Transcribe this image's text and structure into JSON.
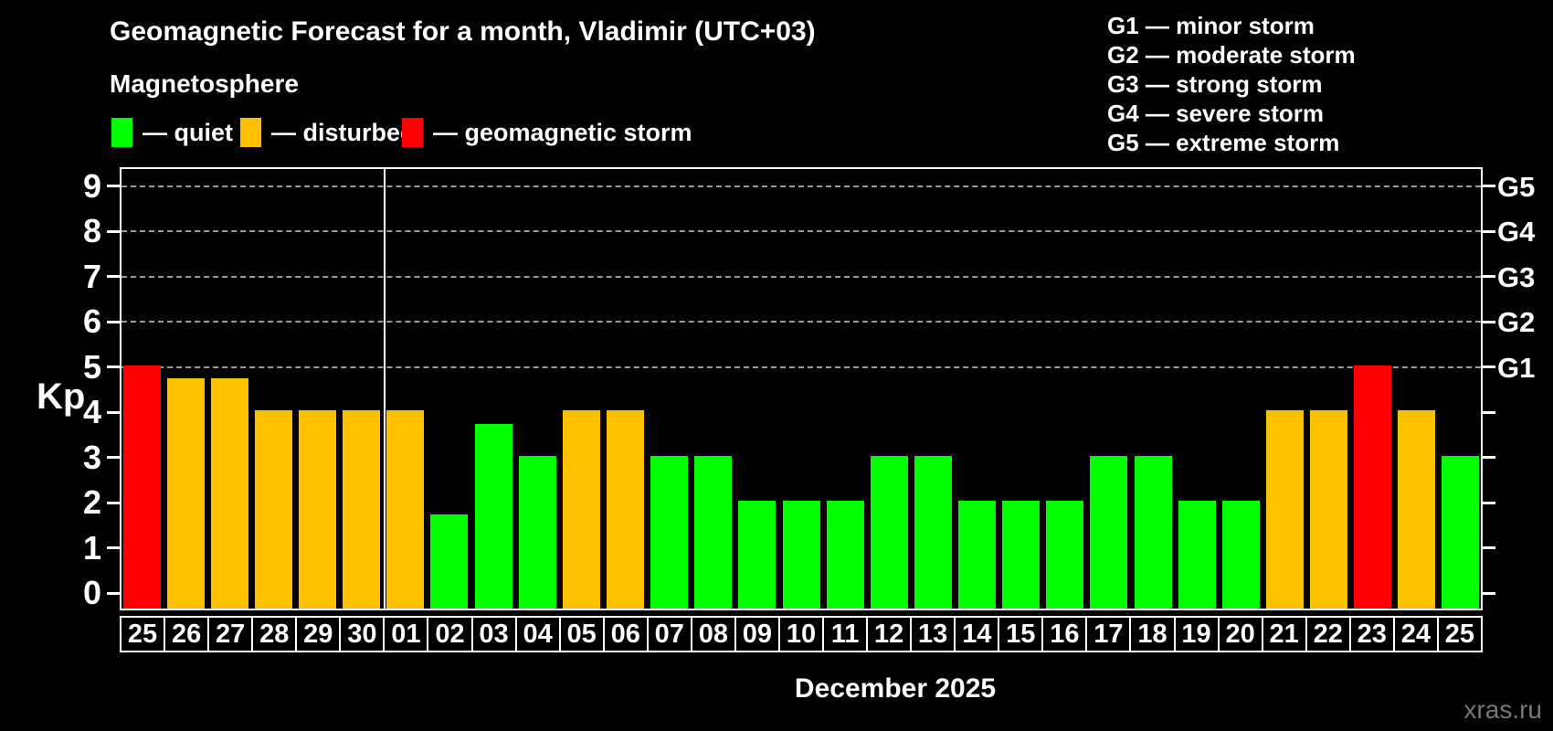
{
  "header": {
    "title": "Geomagnetic Forecast for a month, Vladimir (UTC+03)",
    "subtitle": "Magnetosphere"
  },
  "legend": {
    "items": [
      {
        "label": "— quiet",
        "status": "quiet",
        "color": "#00ff00"
      },
      {
        "label": "— disturbed",
        "status": "disturbed",
        "color": "#ffc000"
      },
      {
        "label": "— geomagnetic storm",
        "status": "storm",
        "color": "#ff0000"
      }
    ]
  },
  "g_legend": [
    "G1 — minor storm",
    "G2 — moderate storm",
    "G3 — strong storm",
    "G4 — severe storm",
    "G5 — extreme storm"
  ],
  "footer": {
    "month_label": "December 2025",
    "watermark": "xras.ru"
  },
  "chart_data": {
    "type": "bar",
    "title": "Geomagnetic Forecast for a month, Vladimir (UTC+03)",
    "ylabel": "Kp",
    "xlabel": "December 2025",
    "ylim": [
      0,
      9
    ],
    "yticks": [
      0,
      1,
      2,
      3,
      4,
      5,
      6,
      7,
      8,
      9
    ],
    "gridlines_at": [
      5,
      6,
      7,
      8,
      9
    ],
    "grid": "dashed horizontal at storm levels only",
    "right_axis_labels": [
      {
        "label": "G1",
        "kp": 5
      },
      {
        "label": "G2",
        "kp": 6
      },
      {
        "label": "G3",
        "kp": 7
      },
      {
        "label": "G4",
        "kp": 8
      },
      {
        "label": "G5",
        "kp": 9
      }
    ],
    "month_separator_after_index": 5,
    "status_colors": {
      "quiet": "#00ff00",
      "disturbed": "#ffc000",
      "storm": "#ff0000"
    },
    "categories": [
      "25",
      "26",
      "27",
      "28",
      "29",
      "30",
      "01",
      "02",
      "03",
      "04",
      "05",
      "06",
      "07",
      "08",
      "09",
      "10",
      "11",
      "12",
      "13",
      "14",
      "15",
      "16",
      "17",
      "18",
      "19",
      "20",
      "21",
      "22",
      "23",
      "24",
      "25"
    ],
    "bars": [
      {
        "day": "25",
        "kp": 5.0,
        "status": "storm"
      },
      {
        "day": "26",
        "kp": 4.7,
        "status": "disturbed"
      },
      {
        "day": "27",
        "kp": 4.7,
        "status": "disturbed"
      },
      {
        "day": "28",
        "kp": 4.0,
        "status": "disturbed"
      },
      {
        "day": "29",
        "kp": 4.0,
        "status": "disturbed"
      },
      {
        "day": "30",
        "kp": 4.0,
        "status": "disturbed"
      },
      {
        "day": "01",
        "kp": 4.0,
        "status": "disturbed"
      },
      {
        "day": "02",
        "kp": 1.7,
        "status": "quiet"
      },
      {
        "day": "03",
        "kp": 3.7,
        "status": "quiet"
      },
      {
        "day": "04",
        "kp": 3.0,
        "status": "quiet"
      },
      {
        "day": "05",
        "kp": 4.0,
        "status": "disturbed"
      },
      {
        "day": "06",
        "kp": 4.0,
        "status": "disturbed"
      },
      {
        "day": "07",
        "kp": 3.0,
        "status": "quiet"
      },
      {
        "day": "08",
        "kp": 3.0,
        "status": "quiet"
      },
      {
        "day": "09",
        "kp": 2.0,
        "status": "quiet"
      },
      {
        "day": "10",
        "kp": 2.0,
        "status": "quiet"
      },
      {
        "day": "11",
        "kp": 2.0,
        "status": "quiet"
      },
      {
        "day": "12",
        "kp": 3.0,
        "status": "quiet"
      },
      {
        "day": "13",
        "kp": 3.0,
        "status": "quiet"
      },
      {
        "day": "14",
        "kp": 2.0,
        "status": "quiet"
      },
      {
        "day": "15",
        "kp": 2.0,
        "status": "quiet"
      },
      {
        "day": "16",
        "kp": 2.0,
        "status": "quiet"
      },
      {
        "day": "17",
        "kp": 3.0,
        "status": "quiet"
      },
      {
        "day": "18",
        "kp": 3.0,
        "status": "quiet"
      },
      {
        "day": "19",
        "kp": 2.0,
        "status": "quiet"
      },
      {
        "day": "20",
        "kp": 2.0,
        "status": "quiet"
      },
      {
        "day": "21",
        "kp": 4.0,
        "status": "disturbed"
      },
      {
        "day": "22",
        "kp": 4.0,
        "status": "disturbed"
      },
      {
        "day": "23",
        "kp": 5.0,
        "status": "storm"
      },
      {
        "day": "24",
        "kp": 4.0,
        "status": "disturbed"
      },
      {
        "day": "25",
        "kp": 3.0,
        "status": "quiet"
      }
    ]
  }
}
